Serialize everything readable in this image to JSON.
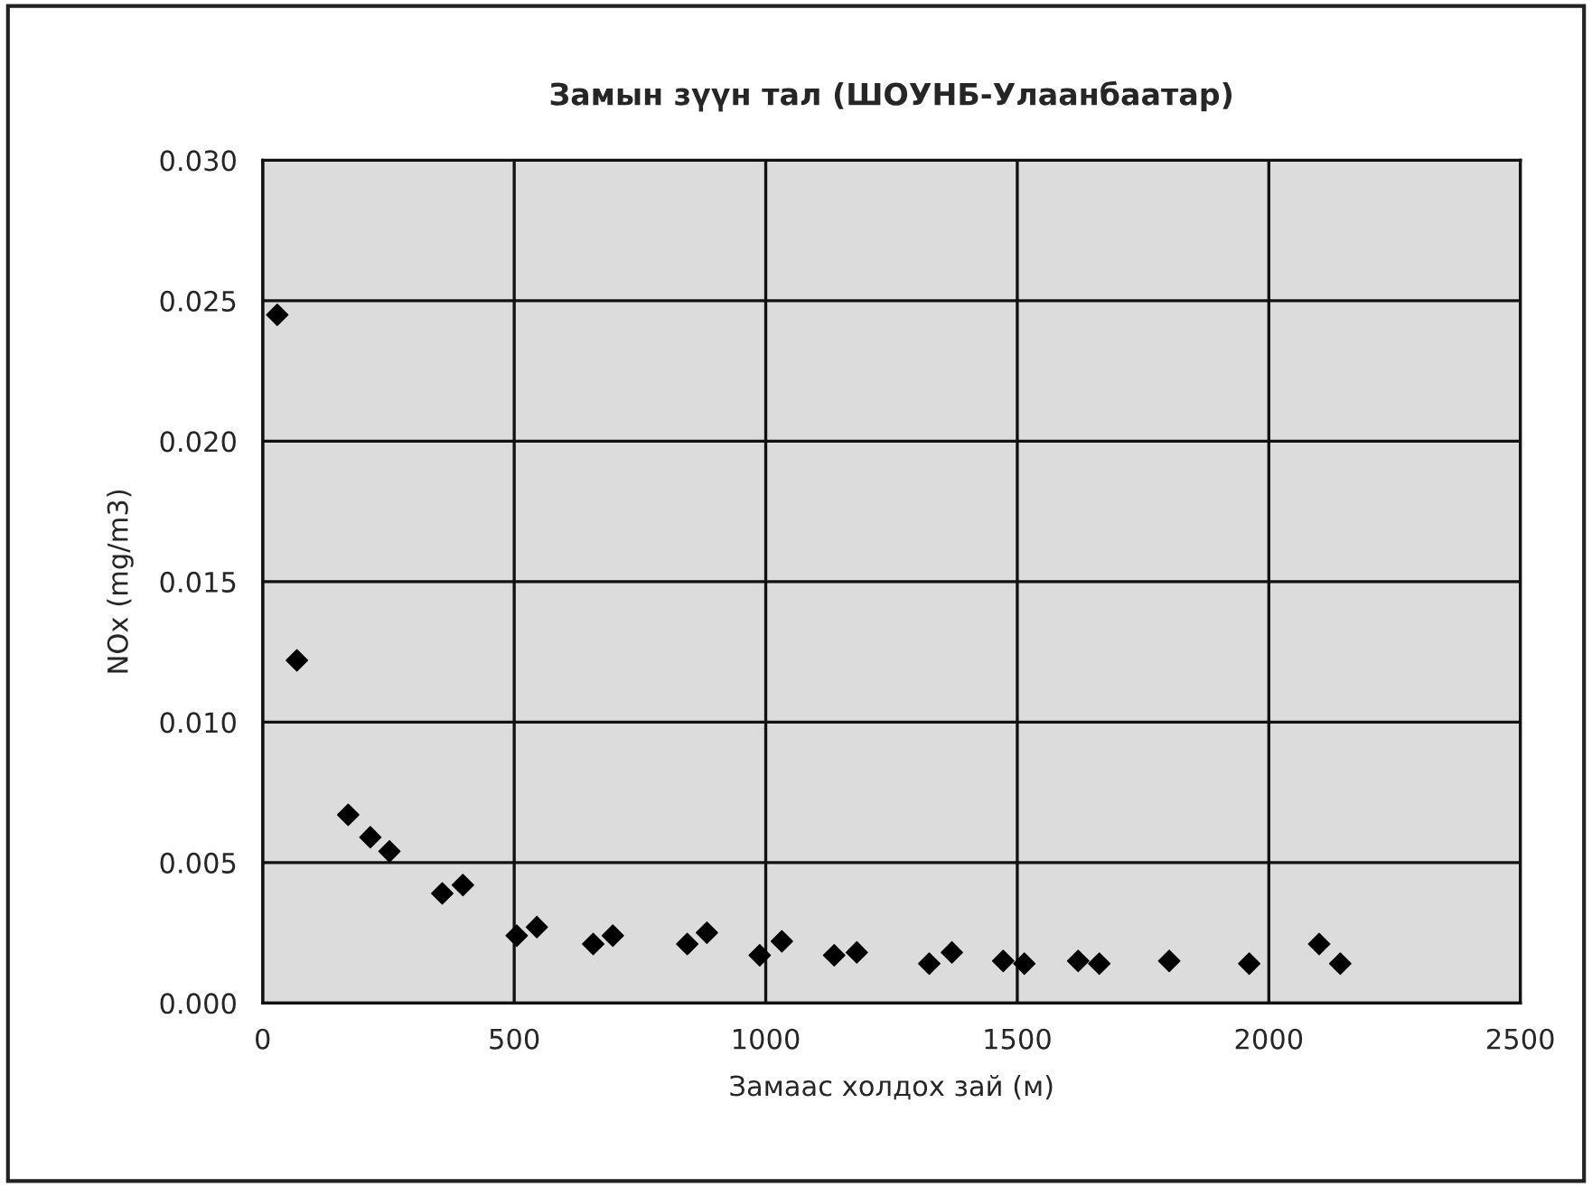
{
  "chart_data": {
    "type": "scatter",
    "title": "Замын зүүн тал (ШОУНБ-Улаанбаатар)",
    "xlabel": "Замаас холдох зай (м)",
    "ylabel": "NOx (mg/m3)",
    "x": [
      29,
      68,
      170,
      214,
      252,
      357,
      398,
      505,
      545,
      657,
      696,
      844,
      883,
      988,
      1032,
      1136,
      1181,
      1325,
      1370,
      1472,
      1514,
      1621,
      1663,
      1802,
      1961,
      2100,
      2142
    ],
    "series": [
      {
        "color": "#000000",
        "values": [
          0.0245,
          0.0122,
          0.0067,
          0.0059,
          0.0054,
          0.0039,
          0.0042,
          0.0024,
          0.0027,
          0.0021,
          0.0024,
          0.0021,
          0.0025,
          0.0017,
          0.0022,
          0.0017,
          0.0018,
          0.0014,
          0.0018,
          0.0015,
          0.0014,
          0.0015,
          0.0014,
          0.0015,
          0.0014,
          0.0021,
          0.0014
        ]
      }
    ],
    "xlim": [
      0,
      2500
    ],
    "xticks": [
      0,
      500,
      1000,
      1500,
      2000,
      2500
    ],
    "ylim": [
      0,
      0.03
    ],
    "yticks": [
      {
        "value": 0,
        "label": "0.000"
      },
      {
        "value": 0.005,
        "label": "0.005"
      },
      {
        "value": 0.01,
        "label": "0.010"
      },
      {
        "value": 0.015,
        "label": "0.015"
      },
      {
        "value": 0.02,
        "label": "0.020"
      },
      {
        "value": 0.025,
        "label": "0.025"
      },
      {
        "value": 0.03,
        "label": "0.030"
      }
    ],
    "grid": true,
    "marker": "diamond",
    "legend": false
  }
}
